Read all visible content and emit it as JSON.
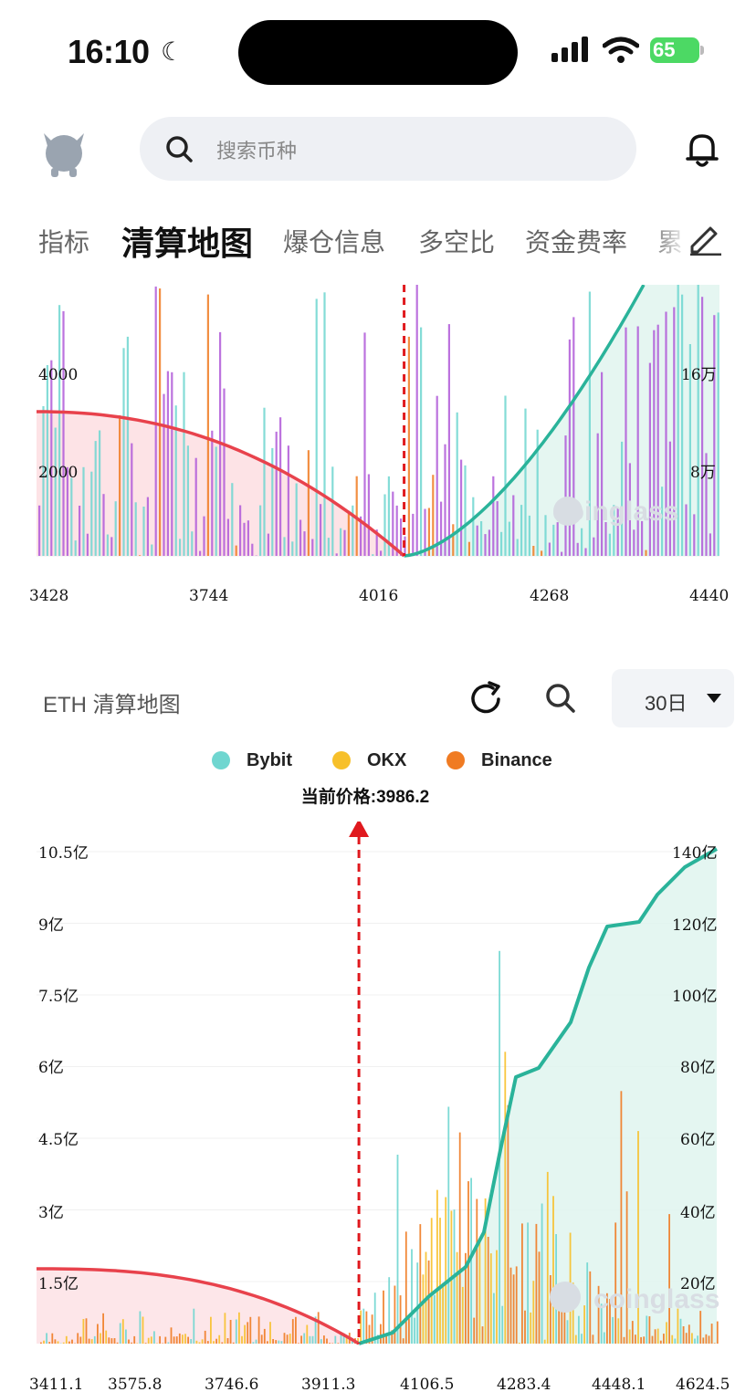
{
  "status": {
    "time": "16:10",
    "battery": "65"
  },
  "search": {
    "placeholder": "搜索币种"
  },
  "tabs": [
    "指标",
    "清算地图",
    "爆仓信息",
    "多空比",
    "资金费率",
    "累"
  ],
  "colors": {
    "short_line": "#e8424c",
    "long_line": "#2ab39a",
    "bybit": "#6fd6d0",
    "okx": "#f7c02a",
    "binance": "#f07b22",
    "purple": "#b05ad8",
    "price_marker": "#e0191e"
  },
  "chart1": {
    "left_axis": [
      "4000",
      "2000"
    ],
    "right_axis": [
      "16万",
      "8万"
    ],
    "x_ticks": [
      "3428",
      "3744",
      "4016",
      "4268",
      "4440"
    ],
    "current_price": 3986.2,
    "x_range": [
      3428,
      4440
    ],
    "watermark": "coinglass"
  },
  "panel": {
    "title": "ETH 清算地图",
    "period": "30日",
    "legend": [
      {
        "name": "Bybit",
        "color": "#6fd6d0"
      },
      {
        "name": "OKX",
        "color": "#f7c02a"
      },
      {
        "name": "Binance",
        "color": "#f07b22"
      }
    ],
    "current_price_label": "当前价格:3986.2"
  },
  "chart2": {
    "left_axis": [
      "10.5亿",
      "9亿",
      "7.5亿",
      "6亿",
      "4.5亿",
      "3亿",
      "1.5亿"
    ],
    "right_axis": [
      "140亿",
      "120亿",
      "100亿",
      "80亿",
      "60亿",
      "40亿",
      "20亿"
    ],
    "x_ticks": [
      "3411.1",
      "3575.8",
      "3746.6",
      "3911.3",
      "4106.5",
      "4283.4",
      "4448.1",
      "4624.5"
    ],
    "current_price": 3986.2,
    "x_range": [
      3411.1,
      4624.5
    ],
    "watermark": "coinglass"
  }
}
